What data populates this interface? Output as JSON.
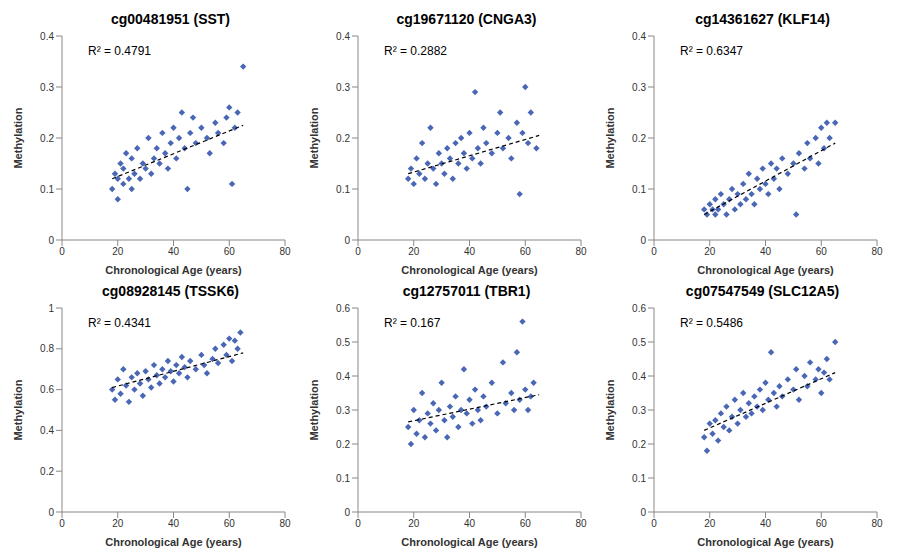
{
  "chart_data": [
    {
      "type": "scatter",
      "title": "cg00481951 (SST)",
      "xlabel": "Chronological Age (years)",
      "ylabel": "Methylation",
      "xlim": [
        0,
        80
      ],
      "xticks": [
        0,
        20,
        40,
        60,
        80
      ],
      "ylim": [
        0,
        0.4
      ],
      "yticks": [
        0,
        0.1,
        0.2,
        0.3,
        0.4
      ],
      "color": "#4a67b5",
      "marker": "diamond",
      "annotations": [
        "R² = 0.4791"
      ],
      "x": [
        18,
        19,
        20,
        20,
        21,
        22,
        22,
        23,
        24,
        25,
        25,
        26,
        27,
        28,
        29,
        30,
        31,
        32,
        33,
        34,
        35,
        36,
        37,
        38,
        39,
        40,
        41,
        42,
        43,
        44,
        45,
        46,
        47,
        48,
        50,
        52,
        53,
        55,
        56,
        58,
        59,
        60,
        61,
        62,
        63,
        65
      ],
      "values": [
        0.1,
        0.13,
        0.08,
        0.12,
        0.15,
        0.11,
        0.14,
        0.17,
        0.12,
        0.1,
        0.16,
        0.13,
        0.18,
        0.12,
        0.15,
        0.14,
        0.2,
        0.13,
        0.16,
        0.18,
        0.15,
        0.21,
        0.17,
        0.14,
        0.19,
        0.22,
        0.16,
        0.2,
        0.25,
        0.18,
        0.1,
        0.21,
        0.24,
        0.19,
        0.22,
        0.2,
        0.17,
        0.23,
        0.21,
        0.19,
        0.24,
        0.26,
        0.11,
        0.22,
        0.25,
        0.34
      ],
      "trend": {
        "type": "line",
        "line_style": "dashed",
        "color": "#000000",
        "x": [
          18,
          65
        ],
        "values": [
          0.12,
          0.225
        ]
      }
    },
    {
      "type": "scatter",
      "title": "cg19671120 (CNGA3)",
      "xlabel": "Chronological Age (years)",
      "ylabel": "Methylation",
      "xlim": [
        0,
        80
      ],
      "xticks": [
        0,
        20,
        40,
        60,
        80
      ],
      "ylim": [
        0,
        0.4
      ],
      "yticks": [
        0,
        0.1,
        0.2,
        0.3,
        0.4
      ],
      "color": "#4a67b5",
      "marker": "diamond",
      "annotations": [
        "R² = 0.2882"
      ],
      "x": [
        18,
        19,
        20,
        21,
        22,
        23,
        24,
        25,
        26,
        27,
        28,
        29,
        30,
        31,
        32,
        33,
        34,
        35,
        36,
        37,
        38,
        39,
        40,
        41,
        42,
        43,
        44,
        45,
        46,
        48,
        50,
        51,
        52,
        54,
        55,
        57,
        58,
        59,
        60,
        61,
        62,
        64
      ],
      "values": [
        0.12,
        0.14,
        0.11,
        0.16,
        0.13,
        0.19,
        0.12,
        0.15,
        0.22,
        0.14,
        0.11,
        0.17,
        0.15,
        0.13,
        0.18,
        0.16,
        0.12,
        0.19,
        0.15,
        0.2,
        0.17,
        0.14,
        0.21,
        0.16,
        0.29,
        0.18,
        0.15,
        0.22,
        0.19,
        0.17,
        0.21,
        0.25,
        0.18,
        0.2,
        0.16,
        0.23,
        0.09,
        0.21,
        0.3,
        0.19,
        0.25,
        0.18
      ],
      "trend": {
        "type": "line",
        "line_style": "dashed",
        "color": "#000000",
        "x": [
          18,
          65
        ],
        "values": [
          0.13,
          0.205
        ]
      }
    },
    {
      "type": "scatter",
      "title": "cg14361627 (KLF14)",
      "xlabel": "Chronological Age (years)",
      "ylabel": "Methylation",
      "xlim": [
        0,
        80
      ],
      "xticks": [
        0,
        20,
        40,
        60,
        80
      ],
      "ylim": [
        0,
        0.4
      ],
      "yticks": [
        0,
        0.1,
        0.2,
        0.3,
        0.4
      ],
      "color": "#4a67b5",
      "marker": "diamond",
      "annotations": [
        "R² = 0.6347"
      ],
      "x": [
        18,
        19,
        20,
        21,
        22,
        22,
        23,
        24,
        25,
        26,
        27,
        28,
        29,
        30,
        31,
        32,
        33,
        34,
        35,
        36,
        37,
        38,
        39,
        40,
        41,
        42,
        43,
        44,
        45,
        46,
        48,
        50,
        51,
        52,
        54,
        55,
        56,
        58,
        59,
        60,
        61,
        62,
        63,
        65
      ],
      "values": [
        0.06,
        0.05,
        0.07,
        0.06,
        0.08,
        0.05,
        0.06,
        0.09,
        0.07,
        0.05,
        0.08,
        0.1,
        0.06,
        0.09,
        0.07,
        0.11,
        0.08,
        0.13,
        0.09,
        0.07,
        0.12,
        0.1,
        0.14,
        0.11,
        0.09,
        0.15,
        0.12,
        0.14,
        0.1,
        0.16,
        0.13,
        0.15,
        0.05,
        0.17,
        0.14,
        0.19,
        0.16,
        0.2,
        0.15,
        0.22,
        0.18,
        0.23,
        0.2,
        0.23
      ],
      "trend": {
        "type": "line",
        "line_style": "dashed",
        "color": "#000000",
        "x": [
          18,
          65
        ],
        "values": [
          0.05,
          0.19
        ]
      }
    },
    {
      "type": "scatter",
      "title": "cg08928145 (TSSK6)",
      "xlabel": "Chronological Age (years)",
      "ylabel": "Methylation",
      "xlim": [
        0,
        80
      ],
      "xticks": [
        0,
        20,
        40,
        60,
        80
      ],
      "ylim": [
        0,
        1
      ],
      "yticks": [
        0,
        0.2,
        0.4,
        0.6,
        0.8,
        1
      ],
      "color": "#4a67b5",
      "marker": "diamond",
      "annotations": [
        "R² = 0.4341"
      ],
      "x": [
        18,
        19,
        20,
        21,
        22,
        23,
        24,
        25,
        26,
        27,
        28,
        29,
        30,
        31,
        32,
        33,
        34,
        35,
        36,
        37,
        38,
        39,
        40,
        41,
        42,
        43,
        44,
        45,
        46,
        48,
        50,
        51,
        52,
        54,
        55,
        56,
        58,
        59,
        60,
        61,
        62,
        63,
        64
      ],
      "values": [
        0.6,
        0.55,
        0.65,
        0.58,
        0.7,
        0.62,
        0.54,
        0.66,
        0.6,
        0.68,
        0.63,
        0.57,
        0.69,
        0.65,
        0.61,
        0.72,
        0.67,
        0.63,
        0.7,
        0.66,
        0.74,
        0.69,
        0.64,
        0.72,
        0.68,
        0.76,
        0.71,
        0.66,
        0.74,
        0.7,
        0.77,
        0.72,
        0.68,
        0.75,
        0.8,
        0.73,
        0.82,
        0.77,
        0.85,
        0.74,
        0.84,
        0.8,
        0.88
      ],
      "trend": {
        "type": "line",
        "line_style": "dashed",
        "color": "#000000",
        "x": [
          18,
          65
        ],
        "values": [
          0.61,
          0.78
        ]
      }
    },
    {
      "type": "scatter",
      "title": "cg12757011 (TBR1)",
      "xlabel": "Chronological Age (years)",
      "ylabel": "Methylation",
      "xlim": [
        0,
        80
      ],
      "xticks": [
        0,
        20,
        40,
        60,
        80
      ],
      "ylim": [
        0,
        0.6
      ],
      "yticks": [
        0,
        0.1,
        0.2,
        0.3,
        0.4,
        0.5,
        0.6
      ],
      "color": "#4a67b5",
      "marker": "diamond",
      "annotations": [
        "R² = 0.167"
      ],
      "x": [
        18,
        19,
        20,
        21,
        22,
        23,
        24,
        25,
        26,
        27,
        28,
        29,
        30,
        31,
        32,
        33,
        34,
        35,
        36,
        37,
        38,
        39,
        40,
        41,
        42,
        43,
        44,
        45,
        46,
        48,
        50,
        52,
        53,
        55,
        56,
        57,
        58,
        59,
        60,
        61,
        62,
        63
      ],
      "values": [
        0.25,
        0.2,
        0.3,
        0.23,
        0.27,
        0.35,
        0.22,
        0.29,
        0.26,
        0.32,
        0.24,
        0.3,
        0.38,
        0.27,
        0.22,
        0.31,
        0.28,
        0.34,
        0.25,
        0.3,
        0.42,
        0.29,
        0.33,
        0.26,
        0.36,
        0.3,
        0.27,
        0.34,
        0.31,
        0.38,
        0.29,
        0.44,
        0.32,
        0.35,
        0.3,
        0.47,
        0.33,
        0.56,
        0.36,
        0.3,
        0.34,
        0.38
      ],
      "trend": {
        "type": "line",
        "line_style": "dashed",
        "color": "#000000",
        "x": [
          18,
          65
        ],
        "values": [
          0.265,
          0.345
        ]
      }
    },
    {
      "type": "scatter",
      "title": "cg07547549 (SLC12A5)",
      "xlabel": "Chronological Age (years)",
      "ylabel": "Methylation",
      "xlim": [
        0,
        80
      ],
      "xticks": [
        0,
        20,
        40,
        60,
        80
      ],
      "ylim": [
        0,
        0.6
      ],
      "yticks": [
        0,
        0.1,
        0.2,
        0.3,
        0.4,
        0.5,
        0.6
      ],
      "color": "#4a67b5",
      "marker": "diamond",
      "annotations": [
        "R² = 0.5486"
      ],
      "x": [
        18,
        19,
        20,
        21,
        22,
        23,
        24,
        25,
        26,
        27,
        28,
        29,
        30,
        31,
        32,
        33,
        34,
        35,
        36,
        37,
        38,
        39,
        40,
        41,
        42,
        43,
        44,
        45,
        46,
        48,
        50,
        51,
        52,
        54,
        55,
        56,
        58,
        59,
        60,
        61,
        62,
        63,
        65
      ],
      "values": [
        0.22,
        0.18,
        0.26,
        0.23,
        0.27,
        0.21,
        0.29,
        0.25,
        0.31,
        0.24,
        0.28,
        0.33,
        0.26,
        0.3,
        0.35,
        0.28,
        0.32,
        0.29,
        0.34,
        0.31,
        0.36,
        0.3,
        0.38,
        0.33,
        0.47,
        0.35,
        0.31,
        0.37,
        0.34,
        0.39,
        0.36,
        0.42,
        0.33,
        0.4,
        0.37,
        0.44,
        0.39,
        0.42,
        0.35,
        0.41,
        0.45,
        0.39,
        0.5
      ],
      "trend": {
        "type": "line",
        "line_style": "dashed",
        "color": "#000000",
        "x": [
          18,
          65
        ],
        "values": [
          0.24,
          0.41
        ]
      }
    }
  ]
}
